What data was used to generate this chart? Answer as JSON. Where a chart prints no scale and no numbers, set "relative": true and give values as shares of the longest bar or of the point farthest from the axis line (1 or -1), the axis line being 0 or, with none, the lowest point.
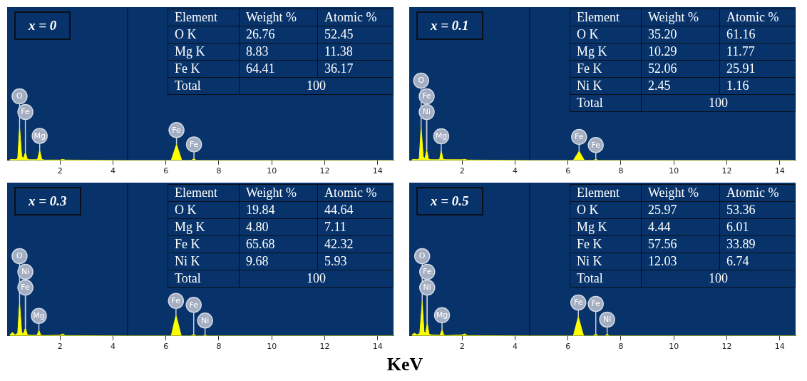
{
  "chart_data": [
    {
      "type": "area",
      "relative": true,
      "title": "x = 0",
      "xlim": [
        0,
        14.6
      ],
      "xticks": [
        2,
        4,
        6,
        8,
        10,
        12,
        14
      ],
      "ref_lines": [
        {
          "axis": "x",
          "value": 4.55,
          "color": "#0a0f1a"
        }
      ],
      "series": [
        {
          "color": "#ffff00",
          "x": [
            0.1,
            0.2,
            0.3,
            0.4,
            0.47,
            0.55,
            0.62,
            0.69,
            0.76,
            0.85,
            1.1,
            1.15,
            1.23,
            1.31,
            1.4,
            2.0,
            2.1,
            2.2,
            4.5,
            6.2,
            6.4,
            6.6,
            6.95,
            7.06,
            7.15,
            14.6
          ],
          "values": [
            0.02,
            0.03,
            0.02,
            0.05,
            1,
            0.12,
            0.06,
            0.24,
            0.04,
            0.02,
            0.02,
            0.03,
            0.3,
            0.03,
            0.01,
            0.01,
            0.03,
            0.01,
            0,
            0,
            0.47,
            0,
            0,
            0.05,
            0,
            0
          ]
        }
      ],
      "annotations": [
        {
          "text": "O",
          "x": 0.47,
          "y": 1
        },
        {
          "text": "Fe",
          "x": 0.69,
          "y": 0.24
        },
        {
          "text": "Mg",
          "x": 1.23,
          "y": 0.3
        },
        {
          "text": "Fe",
          "x": 6.4,
          "y": 0.47
        },
        {
          "text": "Fe",
          "x": 7.06,
          "y": 0.05
        },
        "Element\tWeight %\tAtomic %",
        "O K\t26.76\t52.45",
        "Mg K\t8.83\t11.38",
        "Fe K\t64.41\t36.17",
        "Total\t100"
      ]
    },
    {
      "type": "area",
      "relative": true,
      "title": "x = 0.1",
      "xlim": [
        0,
        14.6
      ],
      "xticks": [
        2,
        4,
        6,
        8,
        10,
        12,
        14
      ],
      "ref_lines": [
        {
          "axis": "x",
          "value": 4.55,
          "color": "#0a0f1a"
        }
      ],
      "series": [
        {
          "color": "#ffff00",
          "x": [
            0.1,
            0.2,
            0.3,
            0.38,
            0.45,
            0.53,
            0.6,
            0.66,
            0.73,
            0.82,
            1.1,
            1.15,
            1.21,
            1.28,
            1.4,
            2.0,
            2.1,
            2.2,
            4.5,
            6.2,
            6.42,
            6.62,
            6.95,
            7.05,
            7.15,
            14.6
          ],
          "values": [
            0.02,
            0.03,
            0.02,
            0.05,
            1,
            0.1,
            0.06,
            0.31,
            0.04,
            0.02,
            0.02,
            0.03,
            0.29,
            0.03,
            0.02,
            0.02,
            0.03,
            0.01,
            0,
            0,
            0.27,
            0,
            0,
            0.03,
            0,
            0
          ]
        }
      ],
      "annotations": [
        {
          "text": "O",
          "x": 0.45,
          "y": 1
        },
        {
          "text": "Fe",
          "x": 0.66,
          "y": 0.31
        },
        {
          "text": "Ni",
          "x": 0.66,
          "y": 0.31
        },
        {
          "text": "Mg",
          "x": 1.21,
          "y": 0.29
        },
        {
          "text": "Fe",
          "x": 6.42,
          "y": 0.27
        },
        {
          "text": "Fe",
          "x": 7.05,
          "y": 0.03
        },
        "Element\tWeight %\tAtomic %",
        "O K\t35.20\t61.16",
        "Mg K\t10.29\t11.77",
        "Fe K\t52.06\t25.91",
        "Ni K\t2.45\t1.16",
        "Total\t100"
      ]
    },
    {
      "type": "area",
      "relative": true,
      "title": "x = 0.3",
      "xlabel": "KeV",
      "xlim": [
        0,
        14.6
      ],
      "xticks": [
        2,
        4,
        6,
        8,
        10,
        12,
        14
      ],
      "ref_lines": [
        {
          "axis": "x",
          "value": 4.55,
          "color": "#0a0f1a"
        }
      ],
      "series": [
        {
          "color": "#ffff00",
          "x": [
            0.1,
            0.2,
            0.3,
            0.4,
            0.47,
            0.55,
            0.62,
            0.69,
            0.76,
            0.85,
            1.1,
            1.14,
            1.2,
            1.27,
            1.4,
            2.0,
            2.1,
            2.2,
            4.5,
            6.2,
            6.38,
            6.58,
            6.95,
            7.05,
            7.15,
            7.4,
            7.48,
            7.56,
            14.6
          ],
          "values": [
            0.03,
            0.1,
            0.03,
            0.08,
            1,
            0.1,
            0.06,
            0.24,
            0.04,
            0.02,
            0.02,
            0.03,
            0.17,
            0.02,
            0.01,
            0.02,
            0.06,
            0.01,
            0,
            0,
            0.61,
            0,
            0,
            0.05,
            0,
            0,
            0.03,
            0,
            0
          ]
        }
      ],
      "annotations": [
        {
          "text": "O",
          "x": 0.47,
          "y": 1
        },
        {
          "text": "Ni",
          "x": 0.69,
          "y": 0.24
        },
        {
          "text": "Fe",
          "x": 0.69,
          "y": 0.24
        },
        {
          "text": "Mg",
          "x": 1.2,
          "y": 0.17
        },
        {
          "text": "Fe",
          "x": 6.38,
          "y": 0.61
        },
        {
          "text": "Fe",
          "x": 7.05,
          "y": 0.05
        },
        {
          "text": "Ni",
          "x": 7.48,
          "y": 0.03
        },
        "Element\tWeight %\tAtomic %",
        "O K\t19.84\t44.64",
        "Mg K\t4.80\t7.11",
        "Fe K\t65.68\t42.32",
        "Ni K\t9.68\t5.93",
        "Total\t100"
      ]
    },
    {
      "type": "area",
      "relative": true,
      "title": "x = 0.5",
      "xlim": [
        0,
        14.6
      ],
      "xticks": [
        2,
        4,
        6,
        8,
        10,
        12,
        14
      ],
      "ref_lines": [
        {
          "axis": "x",
          "value": 4.55,
          "color": "#0a0f1a"
        }
      ],
      "series": [
        {
          "color": "#ffff00",
          "x": [
            0.1,
            0.2,
            0.3,
            0.4,
            0.49,
            0.56,
            0.62,
            0.68,
            0.75,
            0.85,
            1.1,
            1.17,
            1.24,
            1.31,
            1.4,
            2.0,
            2.1,
            2.2,
            4.5,
            6.2,
            6.39,
            6.59,
            6.95,
            7.05,
            7.15,
            7.4,
            7.48,
            7.56,
            14.6
          ],
          "values": [
            0.03,
            0.08,
            0.03,
            0.08,
            1,
            0.12,
            0.08,
            0.39,
            0.05,
            0.03,
            0.02,
            0.03,
            0.19,
            0.02,
            0.01,
            0.03,
            0.06,
            0.01,
            0,
            0,
            0.56,
            0,
            0,
            0.06,
            0,
            0,
            0.06,
            0,
            0
          ]
        }
      ],
      "annotations": [
        {
          "text": "O",
          "x": 0.49,
          "y": 1
        },
        {
          "text": "Fe",
          "x": 0.68,
          "y": 0.39
        },
        {
          "text": "Ni",
          "x": 0.68,
          "y": 0.39
        },
        {
          "text": "Mg",
          "x": 1.24,
          "y": 0.19
        },
        {
          "text": "Fe",
          "x": 6.39,
          "y": 0.56
        },
        {
          "text": "Fe",
          "x": 7.05,
          "y": 0.06
        },
        {
          "text": "Ni",
          "x": 7.48,
          "y": 0.06
        },
        "Element\tWeight %\tAtomic %",
        "O K\t25.97\t53.36",
        "Mg K\t4.44\t6.01",
        "Fe K\t57.56\t33.89",
        "Ni K\t12.03\t6.74",
        "Total\t100"
      ]
    }
  ]
}
